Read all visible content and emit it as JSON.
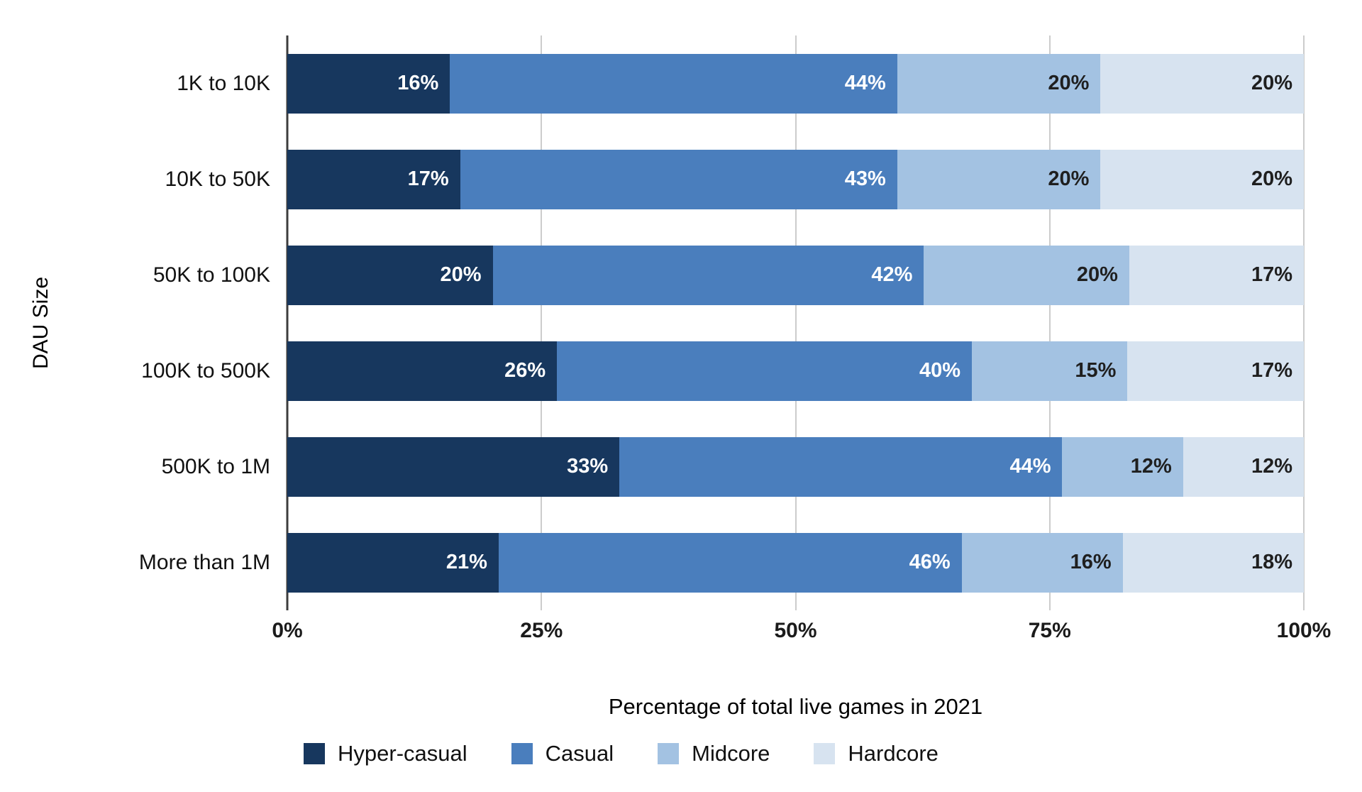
{
  "chart_data": {
    "type": "bar",
    "orientation": "horizontal",
    "stacked": true,
    "xlabel": "Percentage of total live games in 2021",
    "ylabel": "DAU Size",
    "categories": [
      "1K to 10K",
      "10K to 50K",
      "50K to 100K",
      "100K to 500K",
      "500K to 1M",
      "More than 1M"
    ],
    "series": [
      {
        "name": "Hyper-casual",
        "color": "#17375e",
        "label_color": "#ffffff",
        "values": [
          16,
          17,
          20,
          26,
          33,
          21
        ]
      },
      {
        "name": "Casual",
        "color": "#4a7ebd",
        "label_color": "#ffffff",
        "values": [
          44,
          43,
          42,
          40,
          44,
          46
        ]
      },
      {
        "name": "Midcore",
        "color": "#a3c2e2",
        "label_color": "#1f1f1f",
        "values": [
          20,
          20,
          20,
          15,
          12,
          16
        ]
      },
      {
        "name": "Hardcore",
        "color": "#d7e3f0",
        "label_color": "#1f1f1f",
        "values": [
          20,
          20,
          17,
          17,
          12,
          18
        ]
      }
    ],
    "value_suffix": "%",
    "xticks": [
      "0%",
      "25%",
      "50%",
      "75%",
      "100%"
    ],
    "xlim": [
      0,
      100
    ],
    "grid": true,
    "grid_color": "#cccccc",
    "axis_line_color": "#3c3c3c",
    "legend_position": "bottom"
  }
}
